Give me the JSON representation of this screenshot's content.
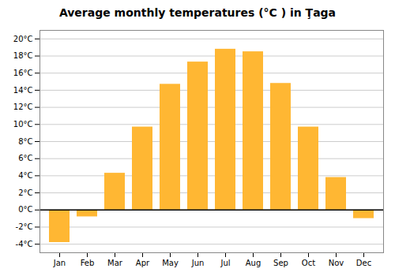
{
  "chart_data": {
    "type": "bar",
    "title": "Average monthly temperatures (°C ) in Ţaga",
    "categories": [
      "Jan",
      "Feb",
      "Mar",
      "Apr",
      "May",
      "Jun",
      "Jul",
      "Aug",
      "Sep",
      "Oct",
      "Nov",
      "Dec"
    ],
    "values": [
      -3.8,
      -0.8,
      4.3,
      9.7,
      14.7,
      17.3,
      18.8,
      18.5,
      14.8,
      9.7,
      3.8,
      -1.0
    ],
    "color": "#FFB733",
    "ylim": [
      -5,
      21
    ],
    "yticks": [
      {
        "value": -4,
        "label": "-4°C"
      },
      {
        "value": -2,
        "label": "-2°C"
      },
      {
        "value": 0,
        "label": "0°C"
      },
      {
        "value": 2,
        "label": "2°C"
      },
      {
        "value": 4,
        "label": "4°C"
      },
      {
        "value": 6,
        "label": "6°C"
      },
      {
        "value": 8,
        "label": "8°C"
      },
      {
        "value": 10,
        "label": "10°C"
      },
      {
        "value": 12,
        "label": "12°C"
      },
      {
        "value": 14,
        "label": "14°C"
      },
      {
        "value": 16,
        "label": "16°C"
      },
      {
        "value": 18,
        "label": "18°C"
      },
      {
        "value": 20,
        "label": "20°C"
      }
    ],
    "grid": true
  }
}
